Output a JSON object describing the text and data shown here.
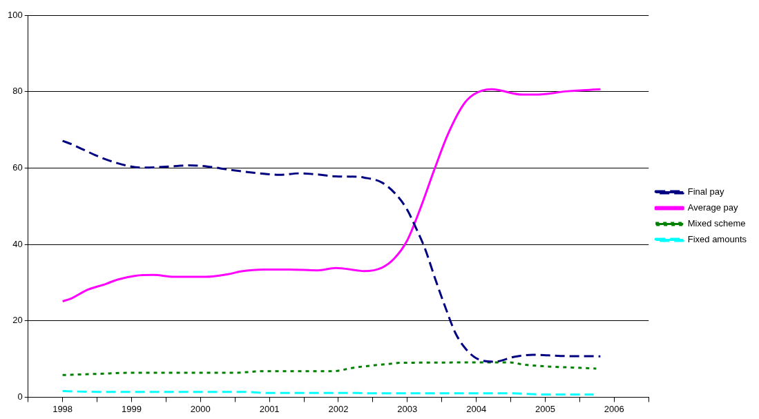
{
  "chart_data": {
    "type": "line",
    "xlim": [
      1997.5,
      2006.5
    ],
    "xticks": [
      {
        "value": 1997.5,
        "label": null
      },
      {
        "value": 1998,
        "label": "1998"
      },
      {
        "value": 1998.5,
        "label": null
      },
      {
        "value": 1999,
        "label": "1999"
      },
      {
        "value": 1999.5,
        "label": null
      },
      {
        "value": 2000,
        "label": "2000"
      },
      {
        "value": 2000.5,
        "label": null
      },
      {
        "value": 2001,
        "label": "2001"
      },
      {
        "value": 2001.5,
        "label": null
      },
      {
        "value": 2002,
        "label": "2002"
      },
      {
        "value": 2002.5,
        "label": null
      },
      {
        "value": 2003,
        "label": "2003"
      },
      {
        "value": 2003.5,
        "label": null
      },
      {
        "value": 2004,
        "label": "2004"
      },
      {
        "value": 2004.5,
        "label": null
      },
      {
        "value": 2005,
        "label": "2005"
      },
      {
        "value": 2005.5,
        "label": null
      },
      {
        "value": 2006,
        "label": "2006"
      },
      {
        "value": 2006.5,
        "label": null
      }
    ],
    "ylim": [
      0,
      100
    ],
    "yticks": [
      0,
      20,
      40,
      60,
      80,
      100
    ],
    "grid": "y",
    "legend": "right",
    "marker": "none",
    "series": [
      {
        "name": "Final pay",
        "color": "#000080",
        "line_style": "dashed",
        "x": [
          1998.0,
          1998.12,
          1998.47,
          1998.62,
          1998.91,
          1999.14,
          1999.66,
          1999.8,
          2000.1,
          2000.43,
          2000.92,
          2001.14,
          2001.44,
          2001.7,
          2001.96,
          2002.27,
          2002.37,
          2002.63,
          2002.85,
          2003.0,
          2003.11,
          2003.26,
          2003.4,
          2003.55,
          2003.7,
          2003.85,
          2004.0,
          2004.26,
          2004.56,
          2004.82,
          2005.22,
          2005.8
        ],
        "values": [
          67.1,
          66.3,
          63.4,
          62.3,
          60.7,
          60.1,
          60.5,
          60.7,
          60.4,
          59.5,
          58.5,
          58.2,
          58.6,
          58.3,
          57.8,
          57.7,
          57.5,
          56.2,
          52.8,
          49.0,
          44.9,
          38.7,
          31.2,
          23.6,
          16.7,
          12.6,
          10.2,
          9.3,
          10.6,
          11.1,
          10.8,
          10.7
        ]
      },
      {
        "name": "Average pay",
        "color": "#ff00ff",
        "line_style": "solid",
        "x": [
          1998.0,
          1998.12,
          1998.36,
          1998.62,
          1998.8,
          1999.06,
          1999.32,
          1999.62,
          2000.07,
          2000.4,
          2000.58,
          2000.92,
          2001.29,
          2001.7,
          2001.96,
          2002.27,
          2002.37,
          2002.63,
          2002.81,
          2003.0,
          2003.18,
          2003.4,
          2003.59,
          2003.81,
          2003.96,
          2004.22,
          2004.67,
          2004.85,
          2005.33,
          2005.8
        ],
        "values": [
          25.1,
          25.8,
          28.1,
          29.6,
          30.8,
          31.8,
          32.0,
          31.5,
          31.5,
          32.2,
          32.9,
          33.4,
          33.4,
          33.2,
          33.8,
          33.2,
          33.0,
          33.9,
          36.3,
          41.1,
          49.0,
          60.0,
          68.9,
          76.5,
          79.2,
          80.6,
          79.2,
          79.2,
          80.1,
          80.6
        ]
      },
      {
        "name": "Mixed scheme",
        "color": "#008000",
        "line_style": "dotted",
        "x": [
          1998.0,
          1998.5,
          1999.0,
          2000.5,
          2000.9,
          2001.9,
          2002.25,
          2002.78,
          2002.89,
          2004.48,
          2004.7,
          2005.74
        ],
        "values": [
          5.8,
          6.1,
          6.4,
          6.4,
          6.8,
          6.8,
          7.8,
          8.8,
          9.0,
          9.1,
          8.5,
          7.5
        ]
      },
      {
        "name": "Fixed amounts",
        "color": "#00ffff",
        "line_style": "dashed",
        "x": [
          1998.0,
          1998.5,
          2000.6,
          2001.0,
          2002.27,
          2002.5,
          2004.5,
          2005.0,
          2005.7
        ],
        "values": [
          1.6,
          1.4,
          1.4,
          1.1,
          1.1,
          1.0,
          1.0,
          0.7,
          0.7
        ]
      }
    ]
  }
}
